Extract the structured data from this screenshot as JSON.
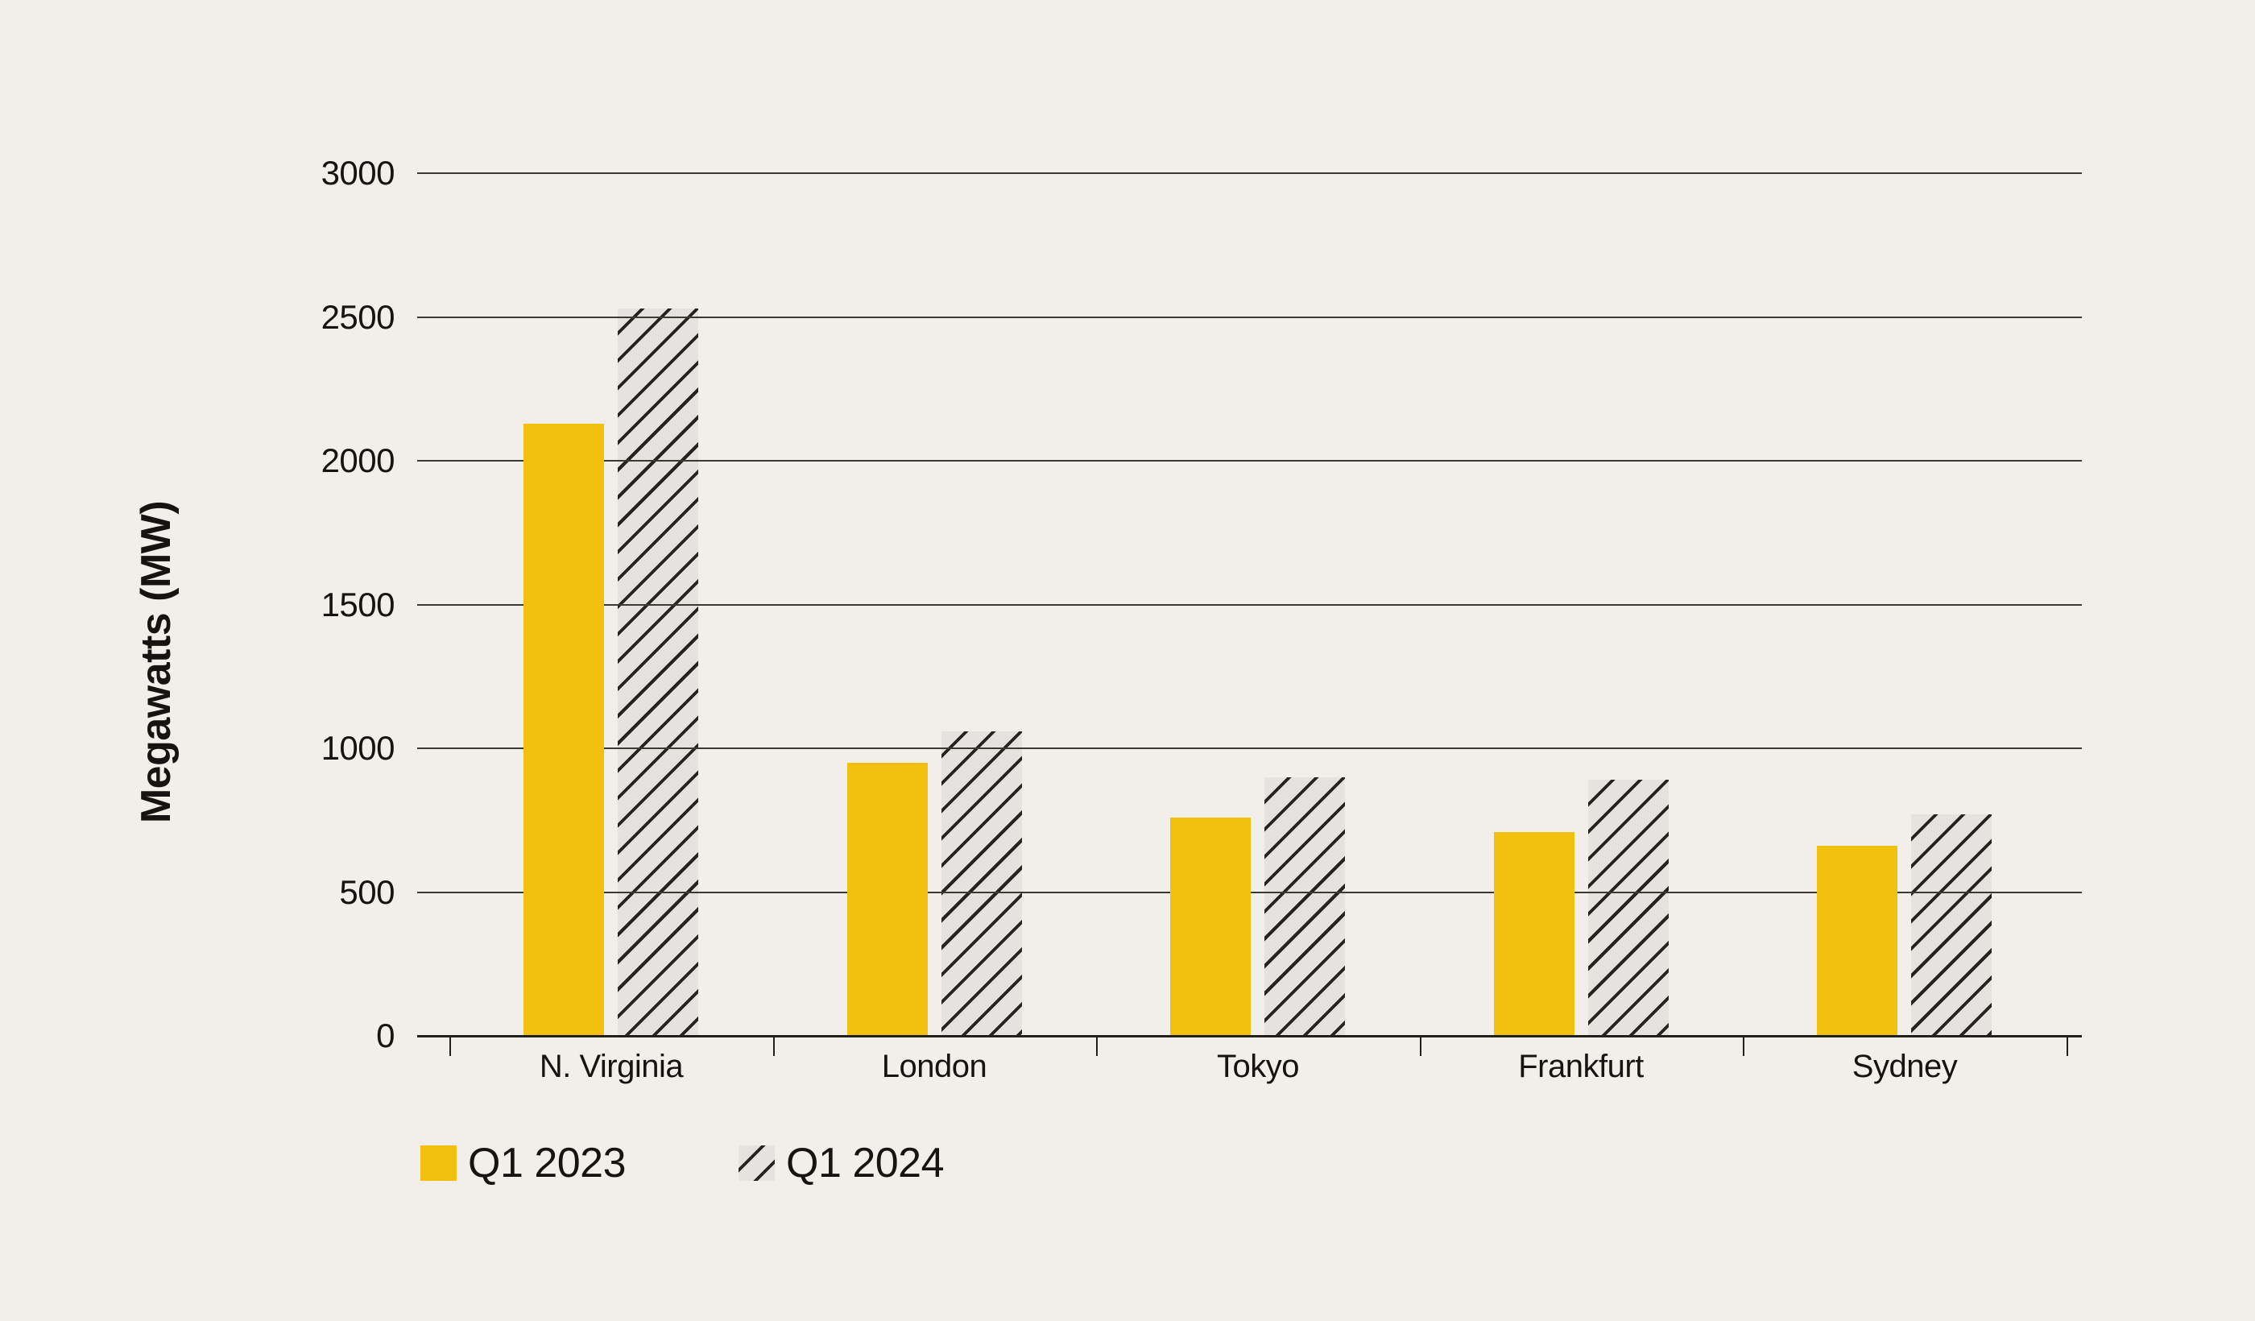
{
  "page": {
    "background": "#F2EFEB",
    "text_color": "#161412"
  },
  "chart_data": {
    "type": "bar",
    "title": "",
    "xlabel": "",
    "ylabel": "Megawatts (MW)",
    "categories": [
      "N. Virginia",
      "London",
      "Tokyo",
      "Frankfurt",
      "Sydney"
    ],
    "series": [
      {
        "name": "Q1 2023",
        "style": "solid",
        "color": "#F2C00E",
        "values": [
          2130,
          950,
          760,
          710,
          660
        ]
      },
      {
        "name": "Q1 2024",
        "style": "hatched",
        "fill_color": "#E5E3E0",
        "hatch_line_color": "#262420",
        "values": [
          2530,
          1060,
          900,
          890,
          770
        ]
      }
    ],
    "ylim": [
      0,
      3000
    ],
    "yticks": [
      0,
      500,
      1000,
      1500,
      2000,
      2500,
      3000
    ],
    "grid": "horizontal",
    "legend_position": "bottom-left",
    "colors": {
      "grid_line": "#3B3934",
      "axis_line": "#21201C",
      "text": "#161412"
    }
  }
}
